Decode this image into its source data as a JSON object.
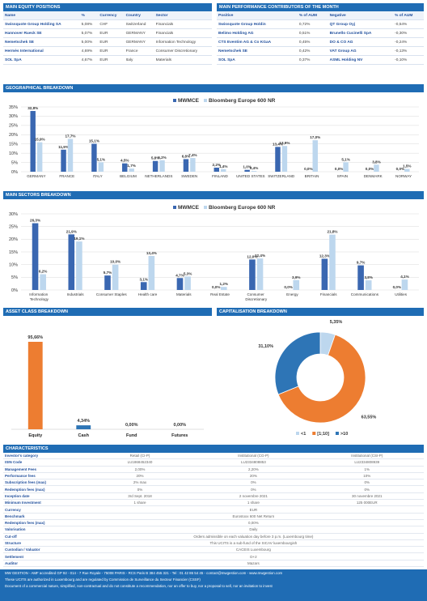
{
  "equity_table": {
    "title": "MAIN EQUITY POSITIONS",
    "columns": [
      "Name",
      "%",
      "Currency",
      "Country",
      "Sector"
    ],
    "rows": [
      [
        "Swissquote Group Holding SA",
        "5,08%",
        "CHF",
        "Switzerland",
        "Financials"
      ],
      [
        "Hannover Rueck SE",
        "5,07%",
        "EUR",
        "GERMANY",
        "Financials"
      ],
      [
        "Nemetschek SE",
        "5,00%",
        "EUR",
        "GERMANY",
        "Information Technology"
      ],
      [
        "Hermès International",
        "4,69%",
        "EUR",
        "France",
        "Consumer Discretionary"
      ],
      [
        "SOL SpA",
        "4,67%",
        "EUR",
        "Italy",
        "Materials"
      ]
    ]
  },
  "contributors_table": {
    "title": "MAIN PERFORMANCE CONTRIBUTORS OF THE MONTH",
    "columns": [
      "Positive",
      "% of AUM",
      "Negative",
      "% of AUM"
    ],
    "rows": [
      [
        "Swissquote Group Holdin",
        "0,72%",
        "QT Group Oyj",
        "-0,54%"
      ],
      [
        "Belimo Holding AG",
        "0,51%",
        "Brunello Cucinelli SpA",
        "-0,30%"
      ],
      [
        "CTS Eventim AG & Co KGaA",
        "0,45%",
        "DO & CO AG",
        "-0,24%"
      ],
      [
        "Nemetschek SE",
        "0,42%",
        "VAT Group AG",
        "-0,13%"
      ],
      [
        "SOL SpA",
        "0,37%",
        "ASML Holding NV",
        "-0,10%"
      ]
    ]
  },
  "chart_data": [
    {
      "type": "grouped-bar",
      "title": "GEOGRAPHICAL BREAKDOWN",
      "categories": [
        "GERMANY",
        "FRANCE",
        "ITALY",
        "BELGIUM",
        "NETHERLANDS",
        "SWEDEN",
        "FINLAND",
        "UNITED STATES",
        "SWITZERLAND",
        "BRITAIN",
        "SPAIN",
        "DENMARK",
        "NORWAY"
      ],
      "series": [
        {
          "name": "MWMCE",
          "color": "#3a67b1",
          "values": [
            32.8,
            11.9,
            15.1,
            4.5,
            5.8,
            6.8,
            2.2,
            1.0,
            13.4,
            0.0,
            0.0,
            0.0,
            0.0
          ],
          "value_labels": [
            "32,8%",
            "11,9%",
            "15,1%",
            "4,5%",
            "5,8%",
            "6,8%",
            "2,2%",
            "1,0%",
            "13,4%",
            "0,0%",
            "0,0%",
            "0,0%",
            "0,0%"
          ]
        },
        {
          "name": "Bloomberg Europe 600 NR",
          "color": "#bdd7ee",
          "values": [
            15.9,
            17.7,
            5.1,
            1.7,
            6.2,
            7.4,
            1.4,
            0.4,
            13.9,
            17.0,
            5.1,
            3.8,
            1.5
          ],
          "value_labels": [
            "15,9%",
            "17,7%",
            "5,1%",
            "1,7%",
            "6,2%",
            "7,4%",
            "1,4%",
            "0,4%",
            "13,9%",
            "17,0%",
            "5,1%",
            "3,8%",
            "1,5%"
          ]
        }
      ],
      "ylim": [
        0,
        35
      ],
      "yticks": [
        {
          "value": 0,
          "label": "0%"
        },
        {
          "value": 5,
          "label": "5%"
        },
        {
          "value": 10,
          "label": "10%"
        },
        {
          "value": 15,
          "label": "15%"
        },
        {
          "value": 20,
          "label": "20%"
        },
        {
          "value": 25,
          "label": "25%"
        },
        {
          "value": 30,
          "label": "30%"
        },
        {
          "value": 35,
          "label": "35%"
        }
      ],
      "grid": true
    },
    {
      "type": "grouped-bar",
      "title": "MAIN SECTORS BREAKDOWN",
      "categories": [
        "Information Technology",
        "Industrials",
        "Consumer Staples",
        "Health care",
        "Materials",
        "Real Estate",
        "Consumer Discretionary",
        "Energy",
        "Financials",
        "Communications",
        "Utilities"
      ],
      "series": [
        {
          "name": "MWMCE",
          "color": "#3a67b1",
          "values": [
            26.3,
            21.9,
            5.7,
            3.1,
            4.7,
            0.0,
            12.0,
            0.0,
            12.3,
            9.7,
            0.0
          ],
          "value_labels": [
            "26,3%",
            "21,9%",
            "5,7%",
            "3,1%",
            "4,7%",
            "0,0%",
            "12,0%",
            "0,0%",
            "12,3%",
            "9,7%",
            "0,0%"
          ]
        },
        {
          "name": "Bloomberg Europe 600 NR",
          "color": "#bdd7ee",
          "values": [
            6.2,
            19.1,
            10.0,
            13.4,
            5.3,
            1.2,
            12.4,
            3.9,
            21.8,
            3.8,
            4.1
          ],
          "value_labels": [
            "6,2%",
            "19,1%",
            "10,0%",
            "13,4%",
            "5,3%",
            "1,2%",
            "12,4%",
            "3,9%",
            "21,8%",
            "3,8%",
            "4,1%"
          ]
        }
      ],
      "ylim": [
        0,
        30
      ],
      "yticks": [
        {
          "value": 0,
          "label": "0%"
        },
        {
          "value": 5,
          "label": "5%"
        },
        {
          "value": 10,
          "label": "10%"
        },
        {
          "value": 15,
          "label": "15%"
        },
        {
          "value": 20,
          "label": "20%"
        },
        {
          "value": 25,
          "label": "25%"
        },
        {
          "value": 30,
          "label": "30%"
        }
      ],
      "grid": true
    },
    {
      "type": "bar",
      "title": "ASSET CLASS BREAKDOWN",
      "categories": [
        "Equity",
        "Cash",
        "Fund",
        "Futures"
      ],
      "values": [
        95.66,
        4.34,
        0.0,
        0.0
      ],
      "value_labels": [
        "95,66%",
        "4,34%",
        "0,00%",
        "0,00%"
      ],
      "colors": [
        "#ed7d31",
        "#2e75b6",
        "#2e75b6",
        "#2e75b6"
      ]
    },
    {
      "type": "pie",
      "title": "CAPITALISATION BREAKDOWN",
      "categories": [
        "<1",
        "[1;10]",
        ">10"
      ],
      "values": [
        5.35,
        63.55,
        31.1
      ],
      "value_labels": [
        "5,35%",
        "63,55%",
        "31,10%"
      ],
      "colors": [
        "#bdd7ee",
        "#ed7d31",
        "#2e75b6"
      ]
    }
  ],
  "characteristics": {
    "title": "CHARACTERISTICS",
    "columns": [
      "Investor's category",
      "Retail (CI-P)",
      "Institutional (CG-P)",
      "Institutional (CSI-P)"
    ],
    "rows": [
      [
        "ISIN Code",
        "LU1868452340",
        "LU2334808853",
        "LU2334808939"
      ],
      [
        "Management Fees",
        "2,00%",
        "2,20%",
        "1%"
      ],
      [
        "Performance fees",
        "20%",
        "20%",
        "10%"
      ],
      [
        "Subscription fees (max)",
        "2% max",
        "0%",
        "0%"
      ],
      [
        "Redemption fees (max)",
        "0%",
        "0%",
        "0%"
      ],
      [
        "Inception date",
        "3rd Sept. 2018",
        "2 novembre 2021",
        "30 novembre 2021"
      ],
      [
        "Minimum Investment",
        "1 share",
        "1 share",
        "125 000EUR"
      ]
    ],
    "shared_rows": [
      [
        "Currency",
        "EUR"
      ],
      [
        "Benchmark",
        "Eurostoxx 600 Net Return"
      ],
      [
        "Redemption fees (max)",
        "0,00%"
      ],
      [
        "Valorisation",
        "Daily"
      ],
      [
        "Cut-off",
        "Orders admissible on each valuation day before 3 p.m. (Luxembourg time)"
      ],
      [
        "Structure",
        "This UCITS is a sub-fund of the SICAV luxembourgish"
      ],
      [
        "Custodian / Valuator",
        "CACEIS Luxembourg"
      ],
      [
        "Settlement",
        "D+2"
      ],
      [
        "Auditor",
        "Mazars"
      ]
    ]
  },
  "footer": [
    "MW GESTION - AMF accredited GP 92 - 014 - 7 Rue Royale - 75008 PARIS - RCS Paris B 384 455 321 - Tel : 01 42 86 54 45 - contact@mwgestion.com - www.mwgestion.com",
    "These UCITS are authorized in Luxembourg and are regulated by Commission de Surveillance du Secteur Financier (CSSF)",
    "Document of a commercial nature, simplified, non-contractual and do not constitute a recommendation, nor an offer to buy, nor a proposal to sell, nor an invitation to invest"
  ]
}
